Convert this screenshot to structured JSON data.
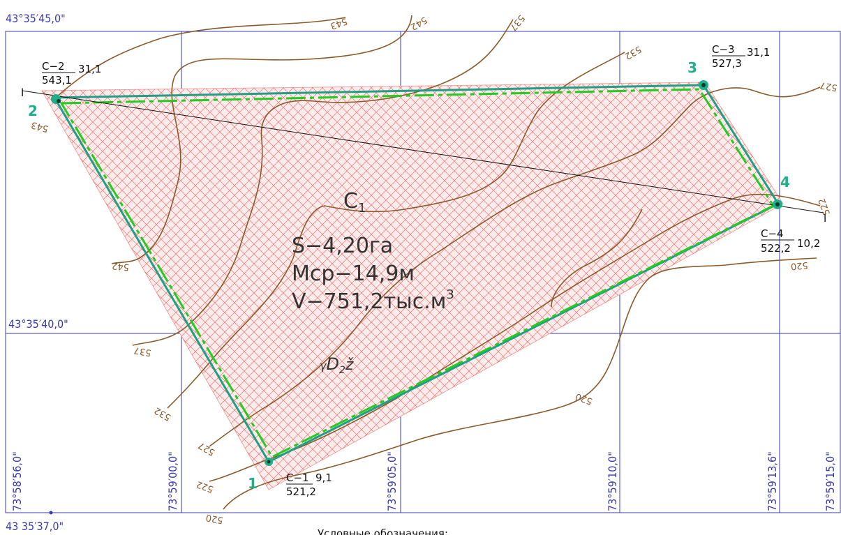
{
  "corner_top_left": "43°35′45,0\"",
  "lat_mid": "43°35′40,0\"",
  "corner_bottom_left": "43 35′37,0\"",
  "lon_labels": [
    "73°58′56,0\"",
    "73°59′00,0\"",
    "73°59′05,0\"",
    "73°59′10,0\"",
    "73°59′13,6\"",
    "73°59′15,0\""
  ],
  "section_marker": "I",
  "points": [
    {
      "num": "1",
      "well": "C−1",
      "elev": "521,2",
      "depth": "9,1"
    },
    {
      "num": "2",
      "well": "C−2",
      "elev": "543,1",
      "depth": "31,1"
    },
    {
      "num": "3",
      "well": "C−3",
      "elev": "527,3",
      "depth": "31,1"
    },
    {
      "num": "4",
      "well": "C−4",
      "elev": "522,2",
      "depth": "10,2"
    }
  ],
  "block": {
    "name_main": "C",
    "name_sub": "1",
    "area": "S−4,20га",
    "thickness": "Mcp−14,9м",
    "volume": "V−751,2тыс.м",
    "volume_sup": "3",
    "geology_prefix": "γ",
    "geology_main": "D",
    "geology_sub": "2",
    "geology_suffix": "ž"
  },
  "contours": [
    "543",
    "542",
    "537",
    "532",
    "527",
    "522",
    "520"
  ],
  "contour_labels": [
    "543",
    "542",
    "537",
    "532",
    "527",
    "522",
    "520",
    "543",
    "542",
    "537",
    "532",
    "527",
    "522",
    "520",
    "520",
    "522",
    "527",
    "532"
  ],
  "legend_title": "Условные обозначения:",
  "colors": {
    "grid": "#3a3ab0",
    "contour": "#8B5A2B",
    "hatch": "#e0413a",
    "boundary_green": "#22cc22",
    "boundary_teal": "#1f9f86",
    "point": "#1fae8a"
  }
}
